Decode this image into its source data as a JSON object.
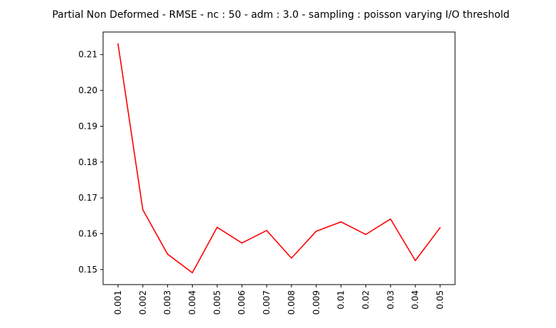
{
  "chart_data": {
    "type": "line",
    "title": "Partial Non Deformed - RMSE - nc : 50 - adm : 3.0 - sampling : poisson varying I/O threshold",
    "xlabel": "",
    "ylabel": "",
    "categories": [
      "0.001",
      "0.002",
      "0.003",
      "0.004",
      "0.005",
      "0.006",
      "0.007",
      "0.008",
      "0.009",
      "0.01",
      "0.02",
      "0.03",
      "0.04",
      "0.05"
    ],
    "series": [
      {
        "values": [
          0.213,
          0.1667,
          0.1543,
          0.1491,
          0.1618,
          0.1574,
          0.1609,
          0.1532,
          0.1607,
          0.1633,
          0.1598,
          0.1641,
          0.1525,
          0.1617
        ],
        "color": "#ff0000"
      }
    ],
    "ylim": [
      0.1458,
      0.2163
    ],
    "yticks": [
      "0.15",
      "0.16",
      "0.17",
      "0.18",
      "0.19",
      "0.20",
      "0.21"
    ],
    "grid": false,
    "legend": "none"
  }
}
